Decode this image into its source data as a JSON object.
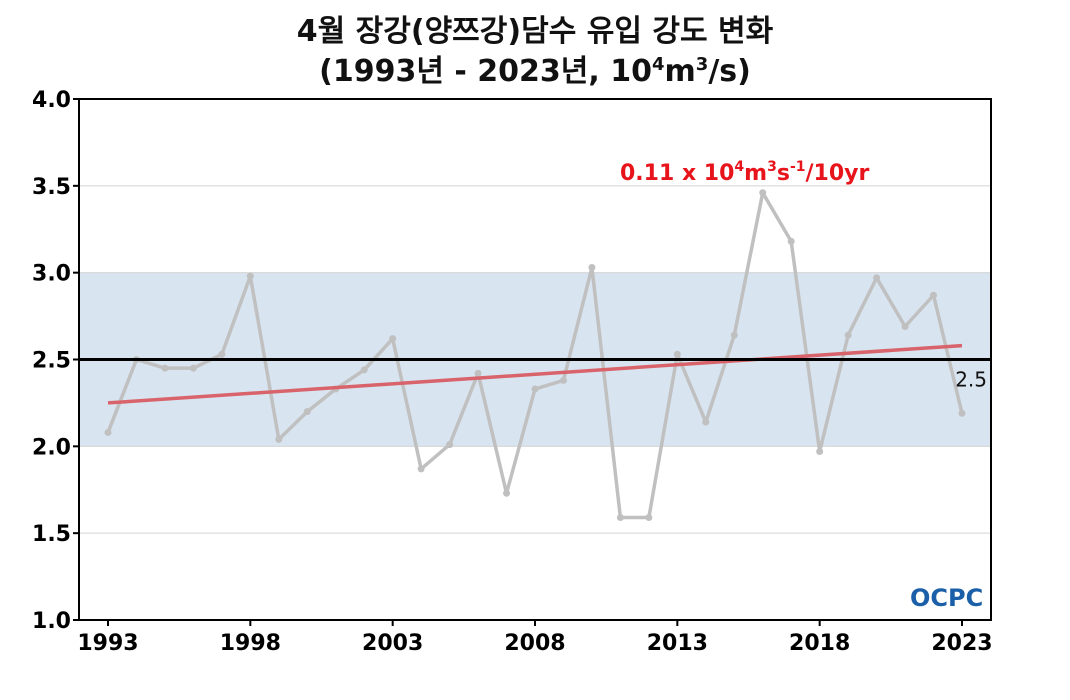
{
  "chart_data": {
    "type": "line",
    "title_line1": "4월 장강(양쯔강)담수 유입 강도 변화",
    "title_line2_pre": "(1993년 - 2023년, 10",
    "title_line2_sup1": "4",
    "title_line2_mid": "m",
    "title_line2_sup2": "3",
    "title_line2_post": "/s)",
    "xlabel": "",
    "ylabel": "",
    "xlim": [
      1993,
      2023
    ],
    "ylim": [
      1.0,
      4.0
    ],
    "x_ticks": [
      1993,
      1998,
      2003,
      2008,
      2013,
      2018,
      2023
    ],
    "y_ticks": [
      "1.0",
      "1.5",
      "2.0",
      "2.5",
      "3.0",
      "3.5",
      "4.0"
    ],
    "grid": "horizontal",
    "series": [
      {
        "color": "#c0c0c0",
        "x": [
          1993,
          1994,
          1995,
          1996,
          1997,
          1998,
          1999,
          2000,
          2001,
          2002,
          2003,
          2004,
          2005,
          2006,
          2007,
          2008,
          2009,
          2010,
          2011,
          2012,
          2013,
          2014,
          2015,
          2016,
          2017,
          2018,
          2019,
          2020,
          2021,
          2022,
          2023
        ],
        "y": [
          2.08,
          2.5,
          2.45,
          2.45,
          2.53,
          2.98,
          2.04,
          2.2,
          2.33,
          2.44,
          2.62,
          1.87,
          2.01,
          2.42,
          1.73,
          2.33,
          2.38,
          3.03,
          1.59,
          1.59,
          2.53,
          2.14,
          2.64,
          3.46,
          3.18,
          1.97,
          2.64,
          2.97,
          2.69,
          2.87,
          2.19
        ]
      }
    ],
    "trend": {
      "color": "#d9636b",
      "x": [
        1993,
        2023
      ],
      "y": [
        2.25,
        2.58
      ],
      "label_value": "0.11 x 10",
      "label_sup1": "4",
      "label_m": "m",
      "label_sup2": "3",
      "label_s": "s",
      "label_sup3": "-1",
      "label_tail": "/10yr",
      "label_color": "#e8141b"
    },
    "reference": {
      "value": 2.5,
      "label": "2.5",
      "color": "#000000"
    },
    "normal_band": {
      "low": 2.0,
      "high": 3.0,
      "color": "#d8e4f0"
    }
  },
  "logo": {
    "text": "OCPC",
    "color": "#1a5fa8"
  }
}
